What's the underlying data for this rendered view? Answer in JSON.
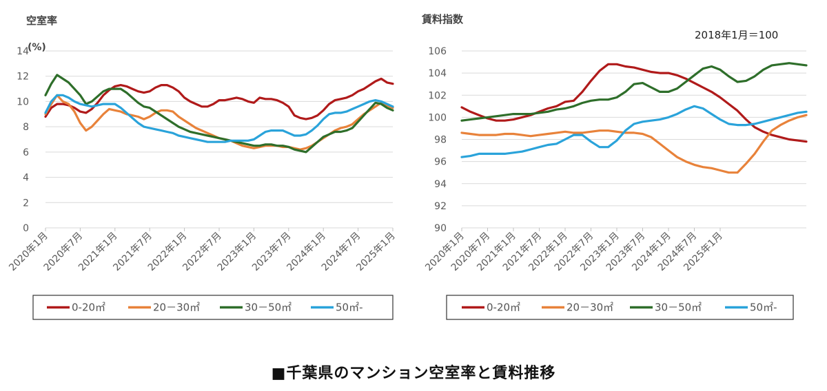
{
  "caption": "■千葉県のマンション空室率と賃料推移",
  "colors": {
    "s0_20": "#B01A1A",
    "s20_30": "#E8823A",
    "s30_50": "#2E6E2A",
    "s50": "#2AA3DA"
  },
  "chart_data": [
    {
      "type": "line",
      "title": "空室率",
      "unit_label": "(%)",
      "ylim": [
        0,
        14
      ],
      "yticks": [
        "0",
        "2",
        "4",
        "6",
        "8",
        "10",
        "12",
        "14"
      ],
      "x_tick_labels": [
        "2020年1月",
        "2020年7月",
        "2021年1月",
        "2021年7月",
        "2022年1月",
        "2022年7月",
        "2023年1月",
        "2023年7月",
        "2024年1月",
        "2024年7月",
        "2025年1月"
      ],
      "legend": [
        "0-20㎡",
        "20－30㎡",
        "30－50㎡",
        "50㎡-"
      ],
      "legend_position": "bottom",
      "grid": true,
      "series": [
        {
          "name": "0-20㎡",
          "color_key": "s0_20",
          "values": [
            8.8,
            9.5,
            9.8,
            9.8,
            9.7,
            9.5,
            9.2,
            9.1,
            9.4,
            9.9,
            10.5,
            10.9,
            11.2,
            11.3,
            11.2,
            11.0,
            10.8,
            10.7,
            10.8,
            11.1,
            11.3,
            11.3,
            11.1,
            10.8,
            10.3,
            10.0,
            9.8,
            9.6,
            9.6,
            9.8,
            10.1,
            10.1,
            10.2,
            10.3,
            10.2,
            10.0,
            9.9,
            10.3,
            10.2,
            10.2,
            10.1,
            9.9,
            9.6,
            8.9,
            8.7,
            8.6,
            8.7,
            8.9,
            9.3,
            9.8,
            10.1,
            10.2,
            10.3,
            10.5,
            10.8,
            11.0,
            11.3,
            11.6,
            11.8,
            11.5,
            11.4
          ]
        },
        {
          "name": "20－30㎡",
          "color_key": "s20_30",
          "values": [
            9.0,
            9.8,
            10.5,
            10.0,
            9.8,
            9.2,
            8.3,
            7.7,
            8.0,
            8.5,
            9.0,
            9.4,
            9.3,
            9.2,
            9.0,
            8.9,
            8.8,
            8.6,
            8.8,
            9.1,
            9.3,
            9.3,
            9.2,
            8.8,
            8.5,
            8.2,
            7.9,
            7.7,
            7.5,
            7.3,
            7.1,
            7.0,
            6.9,
            6.7,
            6.5,
            6.4,
            6.3,
            6.4,
            6.5,
            6.5,
            6.5,
            6.4,
            6.4,
            6.3,
            6.2,
            6.3,
            6.5,
            6.8,
            7.1,
            7.4,
            7.7,
            7.9,
            8.0,
            8.2,
            8.6,
            9.0,
            9.3,
            9.6,
            9.9,
            9.7,
            9.5
          ]
        },
        {
          "name": "30－50㎡",
          "color_key": "s30_50",
          "values": [
            10.5,
            11.4,
            12.1,
            11.8,
            11.5,
            11.0,
            10.5,
            9.8,
            10.0,
            10.4,
            10.8,
            11.0,
            11.0,
            11.0,
            10.7,
            10.3,
            9.9,
            9.6,
            9.5,
            9.2,
            8.9,
            8.6,
            8.3,
            8.0,
            7.8,
            7.6,
            7.5,
            7.4,
            7.3,
            7.2,
            7.1,
            7.0,
            6.9,
            6.8,
            6.7,
            6.6,
            6.5,
            6.5,
            6.6,
            6.6,
            6.5,
            6.5,
            6.4,
            6.2,
            6.1,
            6.0,
            6.4,
            6.8,
            7.2,
            7.4,
            7.6,
            7.6,
            7.7,
            7.9,
            8.4,
            8.9,
            9.4,
            9.9,
            9.8,
            9.5,
            9.3
          ]
        },
        {
          "name": "50㎡-",
          "color_key": "s50",
          "values": [
            9.1,
            10.0,
            10.5,
            10.5,
            10.3,
            10.0,
            9.8,
            9.7,
            9.6,
            9.7,
            9.8,
            9.8,
            9.8,
            9.5,
            9.1,
            8.7,
            8.3,
            8.0,
            7.9,
            7.8,
            7.7,
            7.6,
            7.5,
            7.3,
            7.2,
            7.1,
            7.0,
            6.9,
            6.8,
            6.8,
            6.8,
            6.8,
            6.9,
            6.9,
            6.9,
            6.9,
            7.0,
            7.3,
            7.6,
            7.7,
            7.7,
            7.7,
            7.5,
            7.3,
            7.3,
            7.4,
            7.7,
            8.1,
            8.6,
            9.0,
            9.1,
            9.1,
            9.2,
            9.4,
            9.6,
            9.8,
            10.0,
            10.1,
            10.0,
            9.8,
            9.6
          ]
        }
      ]
    },
    {
      "type": "line",
      "title": "賃料指数",
      "note": "2018年1月＝100",
      "ylim": [
        90,
        106
      ],
      "yticks": [
        "90",
        "92",
        "94",
        "96",
        "98",
        "100",
        "102",
        "104",
        "106"
      ],
      "x_tick_labels": [
        "2020年1月",
        "2020年7月",
        "2021年1月",
        "2021年7月",
        "2022年1月",
        "2022年7月",
        "2023年1月",
        "2023年7月",
        "2024年1月",
        "2024年7月",
        "2025年1月"
      ],
      "legend": [
        "0-20㎡",
        "20－30㎡",
        "30－50㎡",
        "50㎡-"
      ],
      "legend_position": "bottom",
      "grid": true,
      "series": [
        {
          "name": "0-20㎡",
          "color_key": "s0_20",
          "values": [
            100.9,
            100.5,
            100.2,
            99.9,
            99.7,
            99.7,
            99.8,
            100.0,
            100.2,
            100.5,
            100.8,
            101.0,
            101.4,
            101.5,
            102.3,
            103.3,
            104.2,
            104.8,
            104.8,
            104.6,
            104.5,
            104.3,
            104.1,
            104.0,
            104.0,
            103.8,
            103.5,
            103.1,
            102.7,
            102.3,
            101.8,
            101.2,
            100.6,
            99.8,
            99.1,
            98.7,
            98.4,
            98.2,
            98.0,
            97.9,
            97.8
          ]
        },
        {
          "name": "20－30㎡",
          "color_key": "s20_30",
          "values": [
            98.6,
            98.5,
            98.4,
            98.4,
            98.4,
            98.5,
            98.5,
            98.4,
            98.3,
            98.4,
            98.5,
            98.6,
            98.7,
            98.6,
            98.6,
            98.7,
            98.8,
            98.8,
            98.7,
            98.6,
            98.6,
            98.5,
            98.2,
            97.6,
            97.0,
            96.4,
            96.0,
            95.7,
            95.5,
            95.4,
            95.2,
            95.0,
            95.0,
            95.8,
            96.7,
            97.8,
            98.8,
            99.3,
            99.7,
            100.0,
            100.2
          ]
        },
        {
          "name": "30－50㎡",
          "color_key": "s30_50",
          "values": [
            99.7,
            99.8,
            99.9,
            100.0,
            100.1,
            100.2,
            100.3,
            100.3,
            100.3,
            100.4,
            100.5,
            100.7,
            100.8,
            101.0,
            101.3,
            101.5,
            101.6,
            101.6,
            101.8,
            102.3,
            103.0,
            103.1,
            102.7,
            102.3,
            102.3,
            102.6,
            103.2,
            103.8,
            104.4,
            104.6,
            104.3,
            103.7,
            103.2,
            103.3,
            103.7,
            104.3,
            104.7,
            104.8,
            104.9,
            104.8,
            104.7
          ]
        },
        {
          "name": "50㎡-",
          "color_key": "s50",
          "values": [
            96.4,
            96.5,
            96.7,
            96.7,
            96.7,
            96.7,
            96.8,
            96.9,
            97.1,
            97.3,
            97.5,
            97.6,
            98.0,
            98.4,
            98.4,
            97.8,
            97.3,
            97.3,
            97.9,
            98.8,
            99.4,
            99.6,
            99.7,
            99.8,
            100.0,
            100.3,
            100.7,
            101.0,
            100.8,
            100.3,
            99.8,
            99.4,
            99.3,
            99.3,
            99.4,
            99.6,
            99.8,
            100.0,
            100.2,
            100.4,
            100.5
          ]
        }
      ]
    }
  ]
}
